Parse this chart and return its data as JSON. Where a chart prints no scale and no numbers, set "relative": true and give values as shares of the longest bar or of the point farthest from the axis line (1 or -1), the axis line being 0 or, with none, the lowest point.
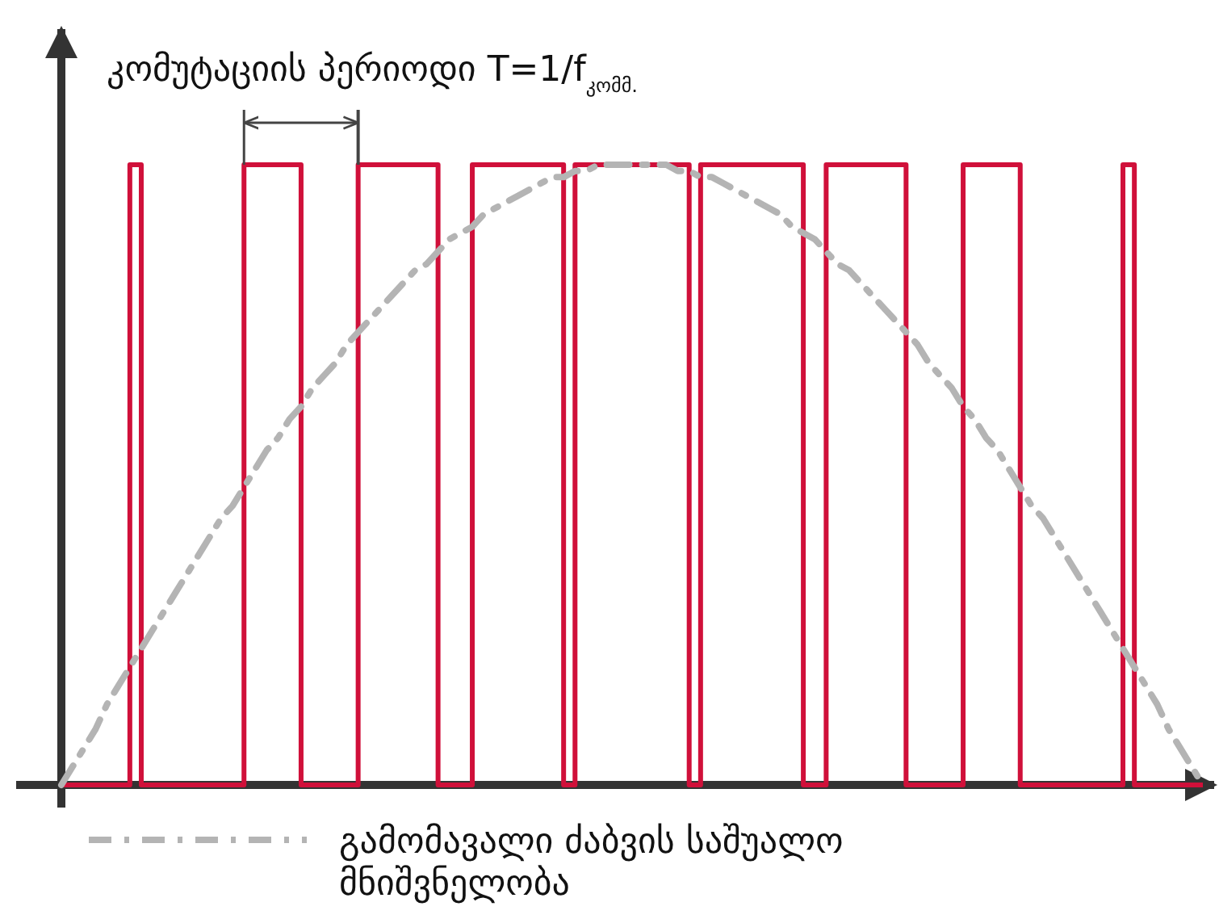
{
  "chart_data": {
    "type": "step",
    "relative": true,
    "categories": [
      null,
      null,
      null,
      null,
      null,
      null,
      null,
      null,
      null,
      null,
      null,
      null,
      null,
      null,
      null,
      null,
      null,
      null,
      null,
      null,
      null,
      null,
      null,
      null,
      null,
      null,
      null,
      null,
      null,
      null,
      null,
      null,
      null,
      null,
      null,
      null,
      null,
      null,
      null,
      null,
      null,
      null,
      null,
      null,
      null,
      null,
      null,
      null,
      null,
      null,
      null,
      null,
      null,
      null,
      null,
      null,
      null,
      null,
      null,
      null,
      null,
      null,
      null,
      null,
      null,
      null,
      null,
      null,
      null,
      null,
      null,
      null,
      null,
      null,
      null,
      null,
      null,
      null,
      null,
      null,
      null,
      null,
      null,
      null,
      null,
      null,
      null,
      null,
      null,
      null,
      null,
      null,
      null,
      null,
      null,
      null,
      null,
      null,
      null,
      null,
      null
    ],
    "annotations": [
      "კომუტაციის პერიოდი T=1/f$_{კომმ.}$"
    ],
    "legend": "bottom",
    "series": [
      {
        "color": "#d0103a",
        "values": [
          0,
          0,
          0,
          0,
          0,
          0,
          1,
          0,
          0,
          0,
          0,
          0,
          0,
          0,
          0,
          0,
          1,
          1,
          1,
          1,
          1,
          0,
          0,
          0,
          0,
          0,
          1,
          1,
          1,
          1,
          1,
          1,
          1,
          0,
          0,
          0,
          1,
          1,
          1,
          1,
          1,
          1,
          1,
          1,
          0,
          1,
          1,
          1,
          1,
          1,
          1,
          1,
          1,
          1,
          1,
          0,
          1,
          1,
          1,
          1,
          1,
          1,
          1,
          1,
          1,
          0,
          0,
          1,
          1,
          1,
          1,
          1,
          1,
          1,
          0,
          0,
          0,
          0,
          0,
          1,
          1,
          1,
          1,
          1,
          0,
          0,
          0,
          0,
          0,
          0,
          0,
          0,
          0,
          1,
          0,
          0,
          0,
          0,
          0,
          0,
          0
        ]
      },
      {
        "type": "line",
        "name": "გამომავალი ძაბვის საშუალო მნიშვნელობა",
        "color": "#b4b4b4",
        "line_style": "dashed",
        "values": [
          0,
          0.03,
          0.06,
          0.09,
          0.13,
          0.16,
          0.19,
          0.22,
          0.25,
          0.28,
          0.31,
          0.34,
          0.37,
          0.4,
          0.43,
          0.45,
          0.48,
          0.51,
          0.54,
          0.56,
          0.59,
          0.61,
          0.64,
          0.66,
          0.68,
          0.71,
          0.73,
          0.75,
          0.77,
          0.79,
          0.81,
          0.83,
          0.84,
          0.86,
          0.88,
          0.89,
          0.9,
          0.92,
          0.93,
          0.94,
          0.95,
          0.96,
          0.97,
          0.98,
          0.98,
          0.99,
          0.99,
          1,
          1,
          1,
          1,
          1,
          1,
          1,
          0.99,
          0.99,
          0.98,
          0.98,
          0.97,
          0.96,
          0.95,
          0.94,
          0.93,
          0.92,
          0.9,
          0.89,
          0.88,
          0.86,
          0.84,
          0.83,
          0.81,
          0.79,
          0.77,
          0.75,
          0.73,
          0.71,
          0.68,
          0.66,
          0.64,
          0.61,
          0.59,
          0.56,
          0.54,
          0.51,
          0.48,
          0.45,
          0.43,
          0.4,
          0.37,
          0.34,
          0.31,
          0.28,
          0.25,
          0.22,
          0.19,
          0.16,
          0.13,
          0.09,
          0.06,
          0.03,
          0
        ]
      }
    ]
  }
}
